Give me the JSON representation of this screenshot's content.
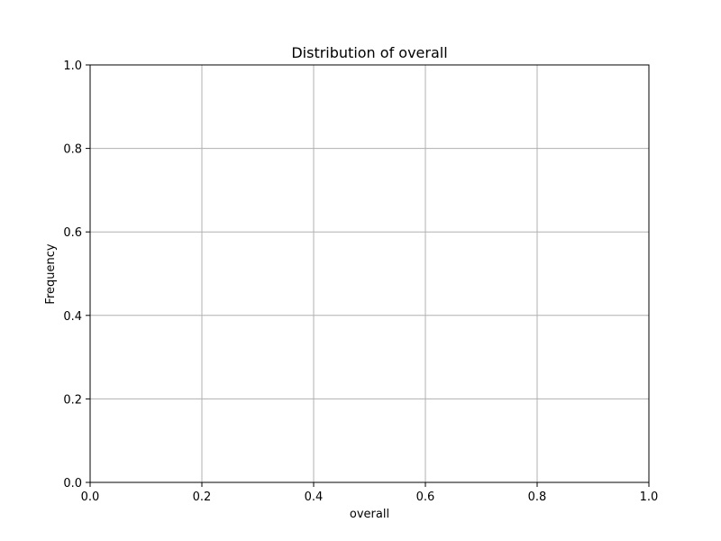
{
  "chart_data": {
    "type": "bar",
    "title": "Distribution of overall",
    "xlabel": "overall",
    "ylabel": "Frequency",
    "xlim": [
      0,
      1
    ],
    "ylim": [
      0,
      1
    ],
    "xticks": [
      0.0,
      0.2,
      0.4,
      0.6,
      0.8,
      1.0
    ],
    "yticks": [
      0.0,
      0.2,
      0.4,
      0.6,
      0.8,
      1.0
    ],
    "xtick_labels": [
      "0.0",
      "0.2",
      "0.4",
      "0.6",
      "0.8",
      "1.0"
    ],
    "ytick_labels": [
      "0.0",
      "0.2",
      "0.4",
      "0.6",
      "0.8",
      "1.0"
    ],
    "grid": true,
    "bins": [],
    "values": []
  },
  "colors": {
    "grid": "#b0b0b0",
    "axes": "#000000",
    "background": "#ffffff"
  }
}
